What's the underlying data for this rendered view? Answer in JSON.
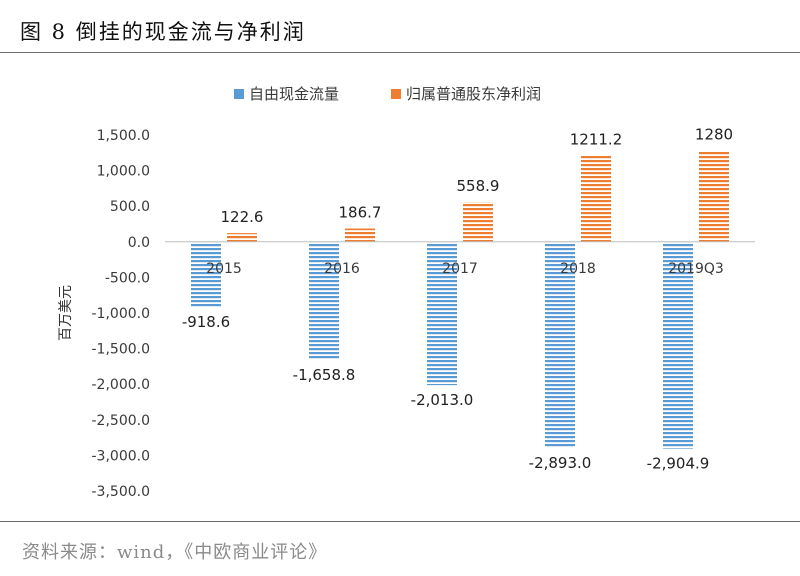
{
  "figure": {
    "title": "图 8  倒挂的现金流与净利润",
    "source": "资料来源：wind，《中欧商业评论》"
  },
  "colors": {
    "blue": "#5b9bd5",
    "orange": "#ed7d31",
    "axis": "#bfbfbf"
  },
  "chart_data": {
    "type": "bar",
    "categories": [
      "2015",
      "2016",
      "2017",
      "2018",
      "2019Q3"
    ],
    "series": [
      {
        "name": "自由现金流量",
        "values": [
          -918.6,
          -1658.8,
          -2013.0,
          -2893.0,
          -2904.9
        ],
        "labels": [
          "-918.6",
          "-1,658.8",
          "-2,013.0",
          "-2,893.0",
          "-2,904.9"
        ]
      },
      {
        "name": "归属普通股东净利润",
        "values": [
          122.6,
          186.7,
          558.9,
          1211.2,
          1280
        ],
        "labels": [
          "122.6",
          "186.7",
          "558.9",
          "1211.2",
          "1280"
        ]
      }
    ],
    "ylabel": "百万美元",
    "ylim": [
      -3500,
      1500
    ],
    "yticks": [
      1500,
      1000,
      500,
      0,
      -500,
      -1000,
      -1500,
      -2000,
      -2500,
      -3000,
      -3500
    ],
    "ytick_labels": [
      "1,500.0",
      "1,000.0",
      "500.0",
      "0.0",
      "-500.0",
      "-1,000.0",
      "-1,500.0",
      "-2,000.0",
      "-2,500.0",
      "-3,000.0",
      "-3,500.0"
    ],
    "legend_position": "top-center",
    "grid": false
  }
}
